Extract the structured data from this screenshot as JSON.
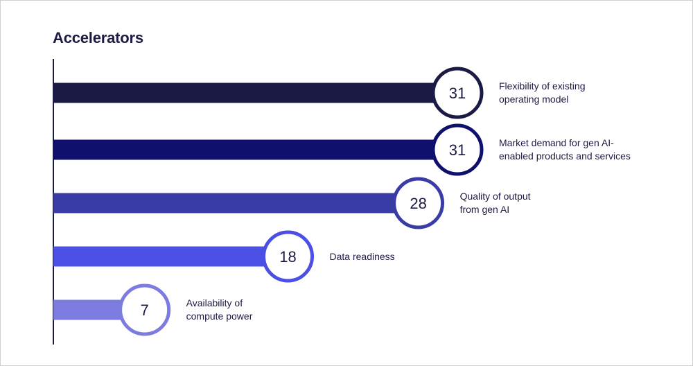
{
  "chart_data": {
    "type": "bar",
    "title": "Accelerators",
    "orientation": "horizontal",
    "categories": [
      "Flexibility of existing\noperating model",
      "Market demand for gen AI-\nenabled products and services",
      "Quality of output\nfrom gen AI",
      "Data readiness",
      "Availability of\ncompute power"
    ],
    "values": [
      31,
      31,
      28,
      18,
      7
    ],
    "value_labels": [
      "31",
      "31",
      "28",
      "18",
      "7"
    ],
    "colors": [
      "#1b1a44",
      "#0f0f6e",
      "#3a3ca6",
      "#4b4fe4",
      "#7b7be0"
    ],
    "xlim": [
      0,
      31
    ],
    "grid": false,
    "legend": "none"
  }
}
